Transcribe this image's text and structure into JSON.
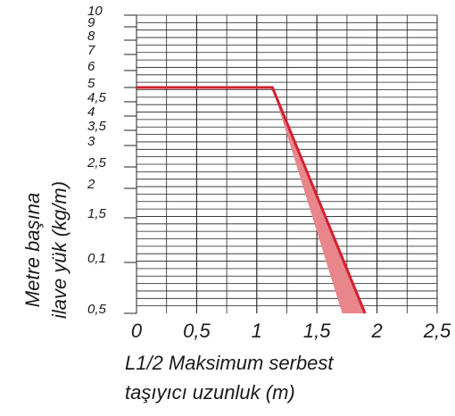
{
  "chart_data": {
    "type": "line",
    "x_label": [
      "L1/2 Maksimum serbest",
      "taşıyıcı uzunluk (m)"
    ],
    "y_label": [
      "Metre başına",
      "ilave yük (kg/m)"
    ],
    "xlim": [
      0,
      2.5
    ],
    "xticks": [
      0,
      {
        "value": 0.5,
        "label": "0,5"
      },
      1,
      {
        "value": 1.5,
        "label": "1,5"
      },
      2,
      {
        "value": 2.5,
        "label": "2,5"
      }
    ],
    "yticks": [
      10,
      9,
      8,
      7,
      6,
      5,
      {
        "value": 4.5,
        "label": "4,5"
      },
      4,
      {
        "value": 3.5,
        "label": "3,5"
      },
      3,
      {
        "value": 2.5,
        "label": "2,5"
      },
      2,
      {
        "value": 1.5,
        "label": "1,5"
      },
      {
        "value": 0.1,
        "label": "0,1"
      },
      {
        "value": 0.5,
        "label": "0,5"
      }
    ],
    "grid": true,
    "series": [
      {
        "color": "#d42030",
        "x": [
          0,
          1.13,
          1.9
        ],
        "values": [
          5,
          5,
          0.5
        ]
      }
    ],
    "band": {
      "color": "#e8868c",
      "x": [
        1.13,
        1.9,
        1.71
      ],
      "values": [
        5,
        0.5,
        0.5
      ]
    }
  }
}
